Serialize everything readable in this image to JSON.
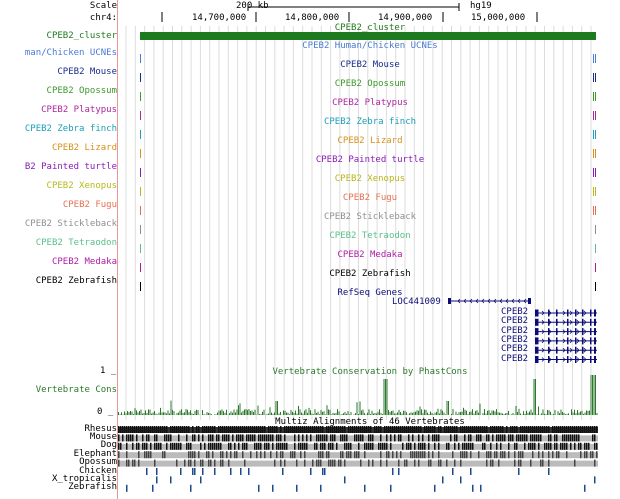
{
  "ruler": {
    "scale_label": "Scale",
    "chrom_label": "chr4:",
    "scale_value": "200 kb",
    "assembly": "hg19",
    "positions": [
      "14,700,000",
      "14,800,000",
      "14,900,000",
      "15,000,000"
    ]
  },
  "colors": {
    "cluster": "#1e7a1e",
    "human_chicken": "#4a7bd6",
    "mouse": "#1a2b8c",
    "opossum": "#3c9a2a",
    "platypus": "#b0269e",
    "zebra_finch": "#1aa0b8",
    "lizard": "#d8901a",
    "painted_turtle": "#8a1ab8",
    "xenopus": "#b8b81a",
    "fugu": "#e87050",
    "stickleback": "#909090",
    "tetraodon": "#5ac08a",
    "medaka": "#b01aa8",
    "zebrafish": "#000000",
    "refseq": "#0c0c78",
    "conservation": "#2a7a2a"
  },
  "tracks": [
    {
      "key": "cluster",
      "label": "CPEB2_cluster",
      "title": "CPEB2_cluster"
    },
    {
      "key": "human_chicken",
      "label": "man/Chicken UCNEs",
      "title": "CPEB2 Human/Chicken UCNEs"
    },
    {
      "key": "mouse",
      "label": "CPEB2 Mouse",
      "title": "CPEB2 Mouse"
    },
    {
      "key": "opossum",
      "label": "CPEB2 Opossum",
      "title": "CPEB2 Opossum"
    },
    {
      "key": "platypus",
      "label": "CPEB2 Platypus",
      "title": "CPEB2 Platypus"
    },
    {
      "key": "zebra_finch",
      "label": "CPEB2 Zebra finch",
      "title": "CPEB2 Zebra finch"
    },
    {
      "key": "lizard",
      "label": "CPEB2 Lizard",
      "title": "CPEB2 Lizard"
    },
    {
      "key": "painted_turtle",
      "label": "B2 Painted turtle",
      "title": "CPEB2 Painted turtle"
    },
    {
      "key": "xenopus",
      "label": "CPEB2 Xenopus",
      "title": "CPEB2 Xenopus"
    },
    {
      "key": "fugu",
      "label": "CPEB2 Fugu",
      "title": "CPEB2 Fugu"
    },
    {
      "key": "stickleback",
      "label": "CPEB2 Stickleback",
      "title": "CPEB2 Stickleback"
    },
    {
      "key": "tetraodon",
      "label": "CPEB2 Tetraodon",
      "title": "CPEB2 Tetraodon"
    },
    {
      "key": "medaka",
      "label": "CPEB2 Medaka",
      "title": "CPEB2 Medaka"
    },
    {
      "key": "zebrafish",
      "label": "CPEB2 Zebrafish",
      "title": "CPEB2 Zebrafish"
    }
  ],
  "refseq": {
    "title": "RefSeq Genes",
    "loc_gene": "LOC441009",
    "genes": [
      "CPEB2",
      "CPEB2",
      "CPEB2",
      "CPEB2",
      "CPEB2",
      "CPEB2"
    ]
  },
  "conservation": {
    "title": "Vertebrate Conservation by PhastCons",
    "label": "Vertebrate Cons",
    "max_label": "1 _",
    "min_label": "0 _"
  },
  "multiz": {
    "title": "Multiz Alignments of 46 Vertebrates",
    "species": [
      "Rhesus",
      "Mouse",
      "Dog",
      "Elephant",
      "Opossum",
      "Chicken",
      "X_tropicalis",
      "Zebrafish"
    ]
  }
}
